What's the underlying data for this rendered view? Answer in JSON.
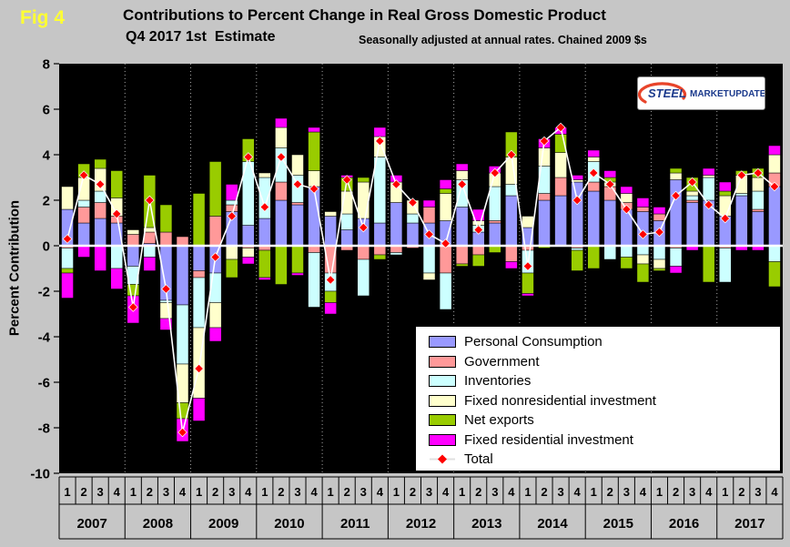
{
  "header": {
    "fig_label": "Fig 4",
    "title": "Contributions to Percent Change in Real Gross Domestic Product",
    "subtitle": "Q4 2017 1st  Estimate",
    "note": "Seasonally adjusted at annual rates. Chained 2009 $s"
  },
  "logo": {
    "steel": "STEEL",
    "market": "MARKET",
    "update": "UPDATE"
  },
  "chart_data": {
    "type": "bar",
    "stacked": true,
    "title": "Contributions to Percent Change in Real Gross Domestic Product",
    "ylabel": "Percent Contribution",
    "ylim": [
      -10,
      8
    ],
    "ytick_step": 2,
    "plot_background": "#000000",
    "legend_position": "bottom-right",
    "grid": "dotted-white-year-separators",
    "years": [
      "2007",
      "2008",
      "2009",
      "2010",
      "2011",
      "2012",
      "2013",
      "2014",
      "2015",
      "2016",
      "2017"
    ],
    "quarter_labels": [
      "1",
      "2",
      "3",
      "4"
    ],
    "series": [
      {
        "name": "Personal Consumption",
        "color": "#9999FF",
        "values": [
          1.6,
          1.0,
          1.2,
          1.0,
          -0.9,
          0.1,
          -2.4,
          -2.6,
          -1.1,
          -1.2,
          1.5,
          0.9,
          1.2,
          2.0,
          1.8,
          2.6,
          1.3,
          0.7,
          1.2,
          1.0,
          1.9,
          1.0,
          1.0,
          1.1,
          1.7,
          0.6,
          1.0,
          2.2,
          0.8,
          2.0,
          2.2,
          2.8,
          2.4,
          2.0,
          1.6,
          1.5,
          1.1,
          2.9,
          1.9,
          2.0,
          1.3,
          2.2,
          1.5,
          2.6
        ]
      },
      {
        "name": "Government",
        "color": "#FF9999",
        "values": [
          -0.1,
          0.7,
          0.7,
          0.3,
          0.5,
          0.5,
          0.6,
          0.4,
          -0.3,
          1.3,
          0.3,
          -0.1,
          -0.2,
          0.8,
          0.1,
          -0.3,
          -1.2,
          -0.2,
          -0.6,
          -0.4,
          -0.3,
          -0.1,
          0.7,
          -1.2,
          -0.8,
          -0.4,
          0.1,
          -0.7,
          -0.2,
          0.3,
          0.8,
          -0.1,
          0.4,
          0.6,
          0.3,
          0.2,
          0.3,
          -0.1,
          0.1,
          0,
          -0.1,
          0,
          0.1,
          0.6
        ]
      },
      {
        "name": "Inventories",
        "color": "#CCFFFF",
        "values": [
          -0.9,
          0.3,
          0.5,
          -1.0,
          -0.8,
          -0.5,
          -0.1,
          -2.6,
          -2.2,
          -1.3,
          0.2,
          2.8,
          1.8,
          1.5,
          1.2,
          -2.4,
          -0.8,
          0.7,
          -1.6,
          2.9,
          -0.1,
          0.4,
          -1.2,
          -1.6,
          1.2,
          0.3,
          1.5,
          0.5,
          -1.0,
          1.2,
          0,
          -0.1,
          0.9,
          -0.6,
          -0.5,
          -0.4,
          -0.6,
          -0.8,
          0.2,
          1.0,
          -1.5,
          0.1,
          0.8,
          -0.7
        ]
      },
      {
        "name": "Fixed nonresidential investment",
        "color": "#FFFFCC",
        "values": [
          1.0,
          1.0,
          1.0,
          0.8,
          0.2,
          0.2,
          -0.7,
          -1.7,
          -3.1,
          -1.1,
          -0.6,
          -0.4,
          0.2,
          0.9,
          0.9,
          0.7,
          0.2,
          1.0,
          1.6,
          0.9,
          0.9,
          0.6,
          -0.3,
          1.2,
          0.4,
          0.2,
          0.6,
          1.2,
          0.5,
          0.8,
          1.1,
          0.1,
          0.2,
          0.2,
          0.4,
          -0.4,
          -0.4,
          0.3,
          0.2,
          0.1,
          0.9,
          0.8,
          0.6,
          0.8
        ]
      },
      {
        "name": "Net exports",
        "color": "#99CC00",
        "values": [
          -0.2,
          0.6,
          0.4,
          1.2,
          -0.5,
          2.3,
          1.2,
          -0.7,
          2.3,
          2.4,
          -0.8,
          1.0,
          -1.2,
          -1.7,
          -1.2,
          1.7,
          -0.5,
          0.6,
          0.2,
          -0.2,
          0,
          0,
          0,
          0.2,
          -0.1,
          -0.5,
          -0.3,
          1.1,
          -0.9,
          -0.1,
          0.8,
          -0.9,
          -1.0,
          0.2,
          -0.5,
          -0.8,
          -0.1,
          0.2,
          0.6,
          -1.6,
          0.2,
          0.2,
          0.4,
          -1.1
        ]
      },
      {
        "name": "Fixed residential investment",
        "color": "#FF00FF",
        "values": [
          -1.1,
          -0.5,
          -1.1,
          -0.9,
          -1.2,
          -0.6,
          -0.5,
          -1.0,
          -1.0,
          -0.6,
          0.7,
          -0.3,
          -0.1,
          0.4,
          -0.1,
          0.2,
          -0.5,
          0.1,
          0,
          0.4,
          0.3,
          0,
          0.3,
          0.4,
          0.3,
          0.5,
          0.3,
          -0.3,
          -0.1,
          0.4,
          0.3,
          0.2,
          0.3,
          0.3,
          0.3,
          0.4,
          0.3,
          -0.3,
          -0.2,
          0.3,
          0.4,
          -0.2,
          -0.2,
          0.4
        ]
      }
    ],
    "total": {
      "name": "Total",
      "line_color": "#FFFFFF",
      "marker_color": "#FF0000",
      "values": [
        0.3,
        3.1,
        2.7,
        1.4,
        -2.7,
        2.0,
        -1.9,
        -8.2,
        -5.4,
        -0.5,
        1.3,
        3.9,
        1.7,
        3.9,
        2.7,
        2.5,
        -1.5,
        2.9,
        0.8,
        4.6,
        2.7,
        1.9,
        0.5,
        0.1,
        2.7,
        0.7,
        3.2,
        4.0,
        -0.9,
        4.6,
        5.2,
        2.0,
        3.2,
        2.7,
        1.6,
        0.5,
        0.6,
        2.2,
        2.8,
        1.8,
        1.2,
        3.1,
        3.2,
        2.6
      ]
    }
  }
}
